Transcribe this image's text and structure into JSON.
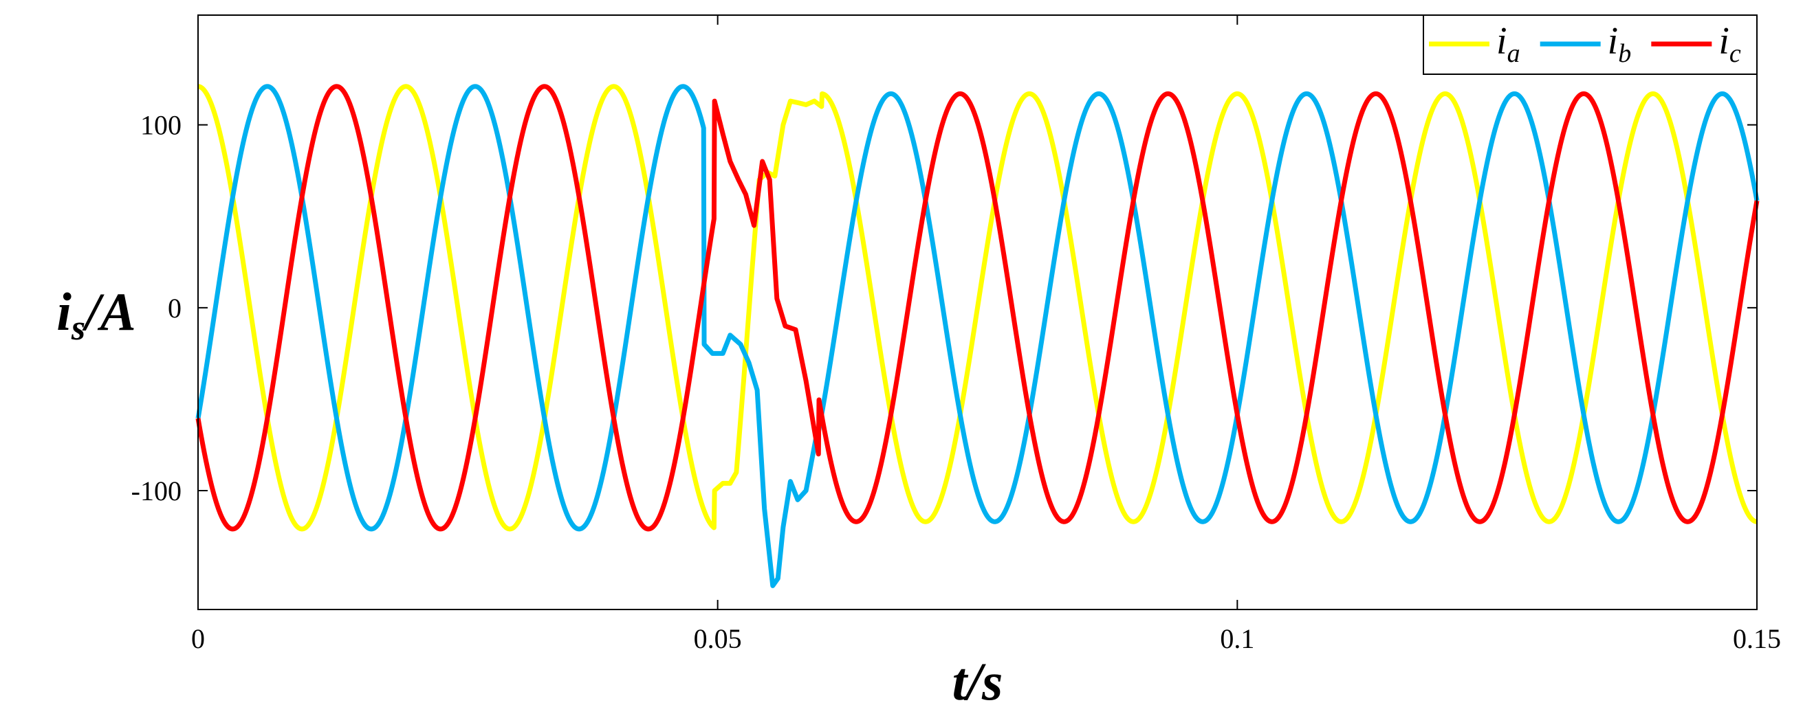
{
  "chart_data": {
    "type": "line",
    "xlabel": {
      "base": "t/s"
    },
    "ylabel": {
      "base": "i",
      "sub": "s",
      "suffix": "/A"
    },
    "xlim": [
      0,
      0.15
    ],
    "ylim": [
      -165,
      160
    ],
    "xticks": [
      0,
      0.05,
      0.1,
      0.15
    ],
    "xtick_labels": [
      "0",
      "0.05",
      "0.1",
      "0.15"
    ],
    "yticks": [
      -100,
      0,
      100
    ],
    "ytick_labels": [
      "-100",
      "0",
      "100"
    ],
    "grid": false,
    "legend_position": "top-right",
    "frequency_hz": 50,
    "series": [
      {
        "name": "i_a",
        "label_base": "i",
        "label_sub": "a",
        "color": "#FFFF00",
        "pre_amplitude": 121,
        "post_amplitude": 117,
        "phase_deg": 90,
        "transient": [
          [
            0.0497,
            -100
          ],
          [
            0.0505,
            -96
          ],
          [
            0.0512,
            -96
          ],
          [
            0.0518,
            -90
          ],
          [
            0.0525,
            -40
          ],
          [
            0.0533,
            20
          ],
          [
            0.054,
            70
          ],
          [
            0.0548,
            74
          ],
          [
            0.0555,
            72
          ],
          [
            0.0563,
            100
          ],
          [
            0.057,
            113
          ],
          [
            0.0578,
            112
          ],
          [
            0.0585,
            111
          ],
          [
            0.0593,
            113
          ],
          [
            0.06,
            110
          ]
        ]
      },
      {
        "name": "i_b",
        "label_base": "i",
        "label_sub": "b",
        "color": "#00B0F0",
        "pre_amplitude": 121,
        "post_amplitude": 117,
        "phase_deg": -30,
        "transient": [
          [
            0.0487,
            -20
          ],
          [
            0.0495,
            -25
          ],
          [
            0.0505,
            -25
          ],
          [
            0.0512,
            -15
          ],
          [
            0.0522,
            -20
          ],
          [
            0.053,
            -30
          ],
          [
            0.0538,
            -45
          ],
          [
            0.0545,
            -110
          ],
          [
            0.0553,
            -152
          ],
          [
            0.0558,
            -148
          ],
          [
            0.0563,
            -120
          ],
          [
            0.057,
            -95
          ],
          [
            0.0577,
            -105
          ],
          [
            0.0585,
            -100
          ],
          [
            0.0595,
            -70
          ]
        ]
      },
      {
        "name": "i_c",
        "label_base": "i",
        "label_sub": "c",
        "color": "#FF0000",
        "pre_amplitude": 121,
        "post_amplitude": 117,
        "phase_deg": 210,
        "transient": [
          [
            0.0497,
            113
          ],
          [
            0.0505,
            95
          ],
          [
            0.0512,
            80
          ],
          [
            0.052,
            70
          ],
          [
            0.0527,
            62
          ],
          [
            0.0535,
            45
          ],
          [
            0.0543,
            80
          ],
          [
            0.055,
            70
          ],
          [
            0.0557,
            5
          ],
          [
            0.0565,
            -10
          ],
          [
            0.0575,
            -12
          ],
          [
            0.0585,
            -40
          ],
          [
            0.0597,
            -80
          ]
        ]
      }
    ]
  }
}
